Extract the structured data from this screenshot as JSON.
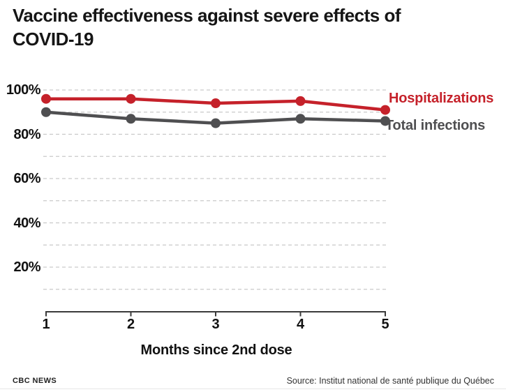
{
  "header": {
    "title": "Vaccine effectiveness against severe effects of COVID-19"
  },
  "chart_data": {
    "type": "line",
    "x": [
      1,
      2,
      3,
      4,
      5
    ],
    "xlabel": "Months since 2nd dose",
    "series": [
      {
        "name": "Hospitalizations",
        "color": "#c5212a",
        "values": [
          96,
          96,
          94,
          95,
          91
        ]
      },
      {
        "name": "Total infections",
        "color": "#4f4f51",
        "values": [
          90,
          87,
          85,
          87,
          86
        ]
      }
    ],
    "ylim": [
      0,
      100
    ],
    "unit": "%",
    "gridline_values": [
      100,
      90,
      80,
      70,
      60,
      50,
      40,
      30,
      20,
      10
    ],
    "ytick_labels": [
      {
        "value": 100,
        "label": "100%"
      },
      {
        "value": 80,
        "label": "80%"
      },
      {
        "value": 60,
        "label": "60%"
      },
      {
        "value": 40,
        "label": "40%"
      },
      {
        "value": 20,
        "label": "20%"
      }
    ],
    "grid_style": "dashed",
    "legend_position": "right-of-last-point",
    "axis_color": "#3a3a3a",
    "gridline_color": "#c9c9c9"
  },
  "footer": {
    "brand": "CBC NEWS",
    "source": "Source: Institut national de santé publique du Québec"
  }
}
